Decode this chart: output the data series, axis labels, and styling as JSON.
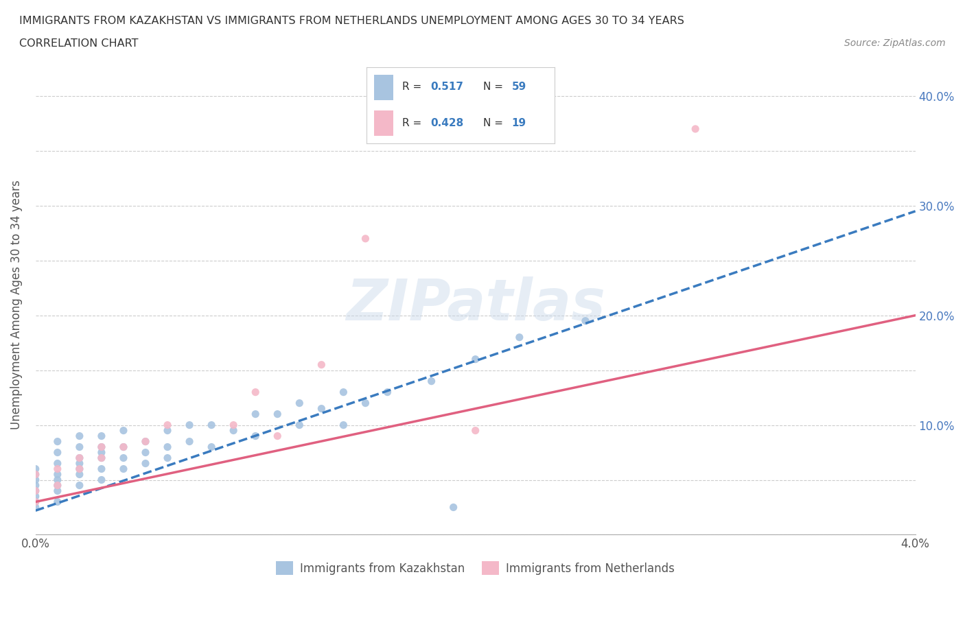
{
  "title_line1": "IMMIGRANTS FROM KAZAKHSTAN VS IMMIGRANTS FROM NETHERLANDS UNEMPLOYMENT AMONG AGES 30 TO 34 YEARS",
  "title_line2": "CORRELATION CHART",
  "source_text": "Source: ZipAtlas.com",
  "ylabel": "Unemployment Among Ages 30 to 34 years",
  "xlim": [
    0.0,
    0.04
  ],
  "ylim": [
    0.0,
    0.42
  ],
  "kaz_color": "#a8c4e0",
  "neth_color": "#f4b8c8",
  "kaz_line_color": "#3a7bbf",
  "neth_line_color": "#e06080",
  "R_kaz": 0.517,
  "N_kaz": 59,
  "R_neth": 0.428,
  "N_neth": 19,
  "legend_label_kaz": "Immigrants from Kazakhstan",
  "legend_label_neth": "Immigrants from Netherlands",
  "watermark": "ZIPatlas",
  "kaz_scatter_x": [
    0.0,
    0.0,
    0.0,
    0.0,
    0.0,
    0.0,
    0.0,
    0.0,
    0.001,
    0.001,
    0.001,
    0.001,
    0.001,
    0.001,
    0.001,
    0.001,
    0.002,
    0.002,
    0.002,
    0.002,
    0.002,
    0.002,
    0.002,
    0.003,
    0.003,
    0.003,
    0.003,
    0.003,
    0.003,
    0.004,
    0.004,
    0.004,
    0.004,
    0.005,
    0.005,
    0.005,
    0.006,
    0.006,
    0.006,
    0.007,
    0.007,
    0.008,
    0.008,
    0.009,
    0.01,
    0.01,
    0.011,
    0.012,
    0.012,
    0.013,
    0.014,
    0.014,
    0.015,
    0.016,
    0.018,
    0.019,
    0.02,
    0.022,
    0.025
  ],
  "kaz_scatter_y": [
    0.025,
    0.03,
    0.035,
    0.04,
    0.045,
    0.05,
    0.055,
    0.06,
    0.03,
    0.04,
    0.045,
    0.05,
    0.055,
    0.065,
    0.075,
    0.085,
    0.045,
    0.055,
    0.06,
    0.065,
    0.07,
    0.08,
    0.09,
    0.05,
    0.06,
    0.07,
    0.075,
    0.08,
    0.09,
    0.06,
    0.07,
    0.08,
    0.095,
    0.065,
    0.075,
    0.085,
    0.07,
    0.08,
    0.095,
    0.085,
    0.1,
    0.08,
    0.1,
    0.095,
    0.09,
    0.11,
    0.11,
    0.1,
    0.12,
    0.115,
    0.1,
    0.13,
    0.12,
    0.13,
    0.14,
    0.025,
    0.16,
    0.18,
    0.195
  ],
  "neth_scatter_x": [
    0.0,
    0.0,
    0.0,
    0.001,
    0.001,
    0.002,
    0.002,
    0.003,
    0.003,
    0.004,
    0.005,
    0.006,
    0.009,
    0.01,
    0.011,
    0.013,
    0.015,
    0.02,
    0.03
  ],
  "neth_scatter_y": [
    0.03,
    0.04,
    0.055,
    0.045,
    0.06,
    0.06,
    0.07,
    0.07,
    0.08,
    0.08,
    0.085,
    0.1,
    0.1,
    0.13,
    0.09,
    0.155,
    0.27,
    0.095,
    0.37
  ],
  "kaz_line_x0": 0.0,
  "kaz_line_y0": 0.022,
  "kaz_line_x1": 0.04,
  "kaz_line_y1": 0.295,
  "neth_line_x0": 0.0,
  "neth_line_y0": 0.03,
  "neth_line_x1": 0.04,
  "neth_line_y1": 0.2
}
